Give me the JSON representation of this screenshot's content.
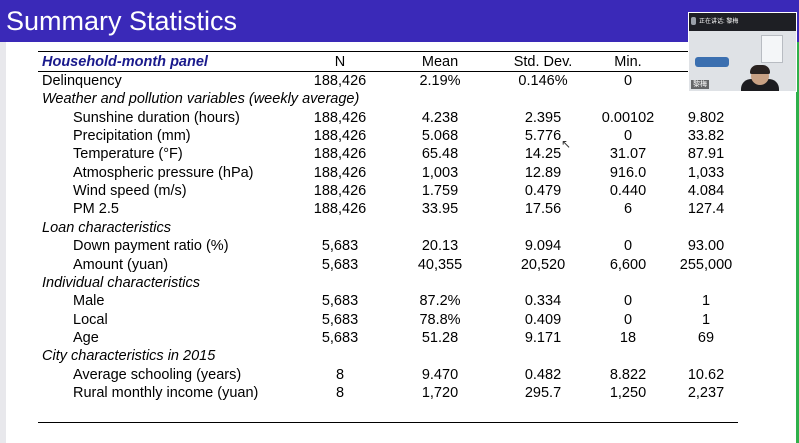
{
  "slide": {
    "title": "Summary Statistics"
  },
  "table": {
    "header": {
      "label": "Household-month panel",
      "n": "N",
      "mean": "Mean",
      "sd": "Std. Dev.",
      "min": "Min.",
      "max": ""
    },
    "rows": [
      {
        "kind": "data",
        "indent": 0,
        "label": "Delinquency",
        "n": "188,426",
        "mean": "2.19%",
        "sd": "0.146%",
        "min": "0",
        "max": ""
      },
      {
        "kind": "section",
        "label": "Weather and pollution variables (weekly average)"
      },
      {
        "kind": "data",
        "indent": 1,
        "label": "Sunshine duration (hours)",
        "n": "188,426",
        "mean": "4.238",
        "sd": "2.395",
        "min": "0.00102",
        "max": "9.802"
      },
      {
        "kind": "data",
        "indent": 1,
        "label": "Precipitation (mm)",
        "n": "188,426",
        "mean": "5.068",
        "sd": "5.776",
        "min": "0",
        "max": "33.82"
      },
      {
        "kind": "data",
        "indent": 1,
        "label": "Temperature (°F)",
        "n": "188,426",
        "mean": "65.48",
        "sd": "14.25",
        "min": "31.07",
        "max": "87.91"
      },
      {
        "kind": "data",
        "indent": 1,
        "label": "Atmospheric pressure (hPa)",
        "n": "188,426",
        "mean": "1,003",
        "sd": "12.89",
        "min": "916.0",
        "max": "1,033"
      },
      {
        "kind": "data",
        "indent": 1,
        "label": "Wind speed (m/s)",
        "n": "188,426",
        "mean": "1.759",
        "sd": "0.479",
        "min": "0.440",
        "max": "4.084"
      },
      {
        "kind": "data",
        "indent": 1,
        "label": "PM 2.5",
        "n": "188,426",
        "mean": "33.95",
        "sd": "17.56",
        "min": "6",
        "max": "127.4"
      },
      {
        "kind": "section",
        "label": "Loan characteristics"
      },
      {
        "kind": "data",
        "indent": 1,
        "label": "Down payment ratio (%)",
        "n": "5,683",
        "mean": "20.13",
        "sd": "9.094",
        "min": "0",
        "max": "93.00"
      },
      {
        "kind": "data",
        "indent": 1,
        "label": "Amount (yuan)",
        "n": "5,683",
        "mean": "40,355",
        "sd": "20,520",
        "min": "6,600",
        "max": "255,000"
      },
      {
        "kind": "section",
        "label": "Individual characteristics"
      },
      {
        "kind": "data",
        "indent": 1,
        "label": "Male",
        "n": "5,683",
        "mean": "87.2%",
        "sd": "0.334",
        "min": "0",
        "max": "1"
      },
      {
        "kind": "data",
        "indent": 1,
        "label": "Local",
        "n": "5,683",
        "mean": "78.8%",
        "sd": "0.409",
        "min": "0",
        "max": "1"
      },
      {
        "kind": "data",
        "indent": 1,
        "label": "Age",
        "n": "5,683",
        "mean": "51.28",
        "sd": "9.171",
        "min": "18",
        "max": "69"
      },
      {
        "kind": "section",
        "label": "City characteristics in 2015"
      },
      {
        "kind": "data",
        "indent": 1,
        "label": "Average schooling (years)",
        "n": "8",
        "mean": "9.470",
        "sd": "0.482",
        "min": "8.822",
        "max": "10.62"
      },
      {
        "kind": "data",
        "indent": 1,
        "label": "Rural monthly income (yuan)",
        "n": "8",
        "mean": "1,720",
        "sd": "295.7",
        "min": "1,250",
        "max": "2,237"
      }
    ]
  },
  "video_overlay": {
    "status": "正在讲话: 黎梅",
    "name": "黎梅"
  },
  "colors": {
    "title_bar": "#3a29b8",
    "header_label": "#1a1a8c",
    "accent_strip": "#2fb04a"
  }
}
